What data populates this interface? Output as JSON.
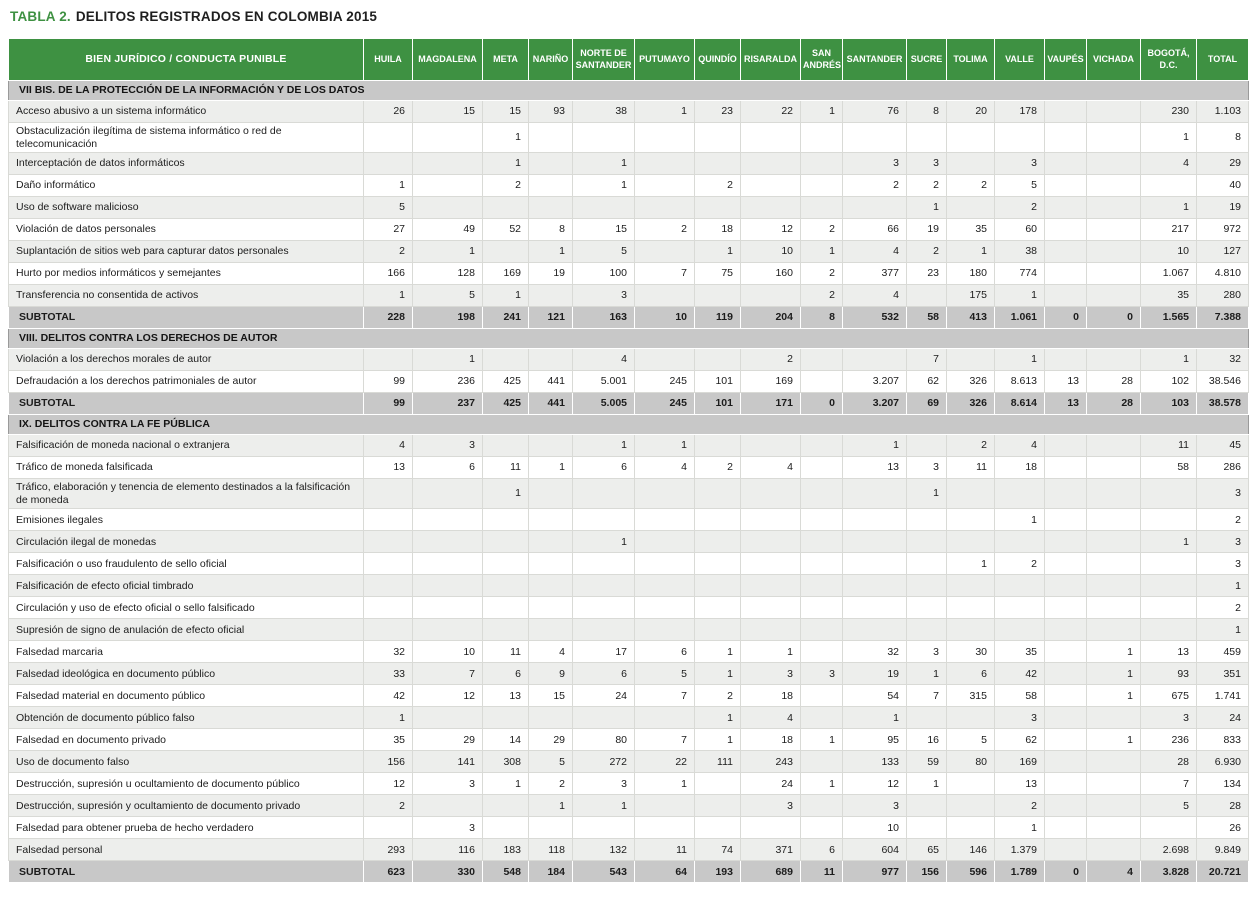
{
  "title": {
    "prefix": "TABLA 2.",
    "text": "DELITOS REGISTRADOS EN COLOMBIA 2015"
  },
  "colors": {
    "title_green": "#3e9142",
    "header_green": "#3e9142",
    "section_gray": "#c8c8c8",
    "row_alt": "#edeeec"
  },
  "table": {
    "corner_header": "BIEN JURÍDICO / CONDUCTA PUNIBLE",
    "columns": [
      "HUILA",
      "MAGDALENA",
      "META",
      "NARIÑO",
      "NORTE DE SANTANDER",
      "PUTUMAYO",
      "QUINDÍO",
      "RISARALDA",
      "SAN ANDRÉS",
      "SANTANDER",
      "SUCRE",
      "TOLIMA",
      "VALLE",
      "VAUPÉS",
      "VICHADA",
      "BOGOTÁ, D.C.",
      "TOTAL"
    ],
    "subtotal_label": "SUBTOTAL",
    "sections": [
      {
        "header": "VII BIS. DE LA PROTECCIÓN DE LA INFORMACIÓN Y DE LOS DATOS",
        "rows": [
          {
            "label": "Acceso abusivo a un sistema informático",
            "values": [
              "26",
              "15",
              "15",
              "93",
              "38",
              "1",
              "23",
              "22",
              "1",
              "76",
              "8",
              "20",
              "178",
              "",
              "",
              "230",
              "1.103"
            ]
          },
          {
            "label": "Obstaculización ilegítima de sistema informático o red de telecomunicación",
            "values": [
              "",
              "",
              "1",
              "",
              "",
              "",
              "",
              "",
              "",
              "",
              "",
              "",
              "",
              "",
              "",
              "1",
              "8"
            ]
          },
          {
            "label": "Interceptación de datos informáticos",
            "values": [
              "",
              "",
              "1",
              "",
              "1",
              "",
              "",
              "",
              "",
              "3",
              "3",
              "",
              "3",
              "",
              "",
              "4",
              "29"
            ]
          },
          {
            "label": "Daño informático",
            "values": [
              "1",
              "",
              "2",
              "",
              "1",
              "",
              "2",
              "",
              "",
              "2",
              "2",
              "2",
              "5",
              "",
              "",
              "",
              "40"
            ]
          },
          {
            "label": "Uso de software malicioso",
            "values": [
              "5",
              "",
              "",
              "",
              "",
              "",
              "",
              "",
              "",
              "",
              "1",
              "",
              "2",
              "",
              "",
              "1",
              "19"
            ]
          },
          {
            "label": "Violación de datos personales",
            "values": [
              "27",
              "49",
              "52",
              "8",
              "15",
              "2",
              "18",
              "12",
              "2",
              "66",
              "19",
              "35",
              "60",
              "",
              "",
              "217",
              "972"
            ]
          },
          {
            "label": "Suplantación de sitios web para capturar datos personales",
            "values": [
              "2",
              "1",
              "",
              "1",
              "5",
              "",
              "1",
              "10",
              "1",
              "4",
              "2",
              "1",
              "38",
              "",
              "",
              "10",
              "127"
            ]
          },
          {
            "label": "Hurto por medios informáticos y semejantes",
            "values": [
              "166",
              "128",
              "169",
              "19",
              "100",
              "7",
              "75",
              "160",
              "2",
              "377",
              "23",
              "180",
              "774",
              "",
              "",
              "1.067",
              "4.810"
            ]
          },
          {
            "label": "Transferencia no consentida de activos",
            "values": [
              "1",
              "5",
              "1",
              "",
              "3",
              "",
              "",
              "",
              "2",
              "4",
              "",
              "175",
              "1",
              "",
              "",
              "35",
              "280"
            ]
          }
        ],
        "subtotal": [
          "228",
          "198",
          "241",
          "121",
          "163",
          "10",
          "119",
          "204",
          "8",
          "532",
          "58",
          "413",
          "1.061",
          "0",
          "0",
          "1.565",
          "7.388"
        ]
      },
      {
        "header": "VIII. DELITOS CONTRA LOS DERECHOS DE AUTOR",
        "rows": [
          {
            "label": "Violación a los derechos morales de autor",
            "values": [
              "",
              "1",
              "",
              "",
              "4",
              "",
              "",
              "2",
              "",
              "",
              "7",
              "",
              "1",
              "",
              "",
              "1",
              "32"
            ]
          },
          {
            "label": "Defraudación a los derechos patrimoniales de autor",
            "values": [
              "99",
              "236",
              "425",
              "441",
              "5.001",
              "245",
              "101",
              "169",
              "",
              "3.207",
              "62",
              "326",
              "8.613",
              "13",
              "28",
              "102",
              "38.546"
            ]
          }
        ],
        "subtotal": [
          "99",
          "237",
          "425",
          "441",
          "5.005",
          "245",
          "101",
          "171",
          "0",
          "3.207",
          "69",
          "326",
          "8.614",
          "13",
          "28",
          "103",
          "38.578"
        ]
      },
      {
        "header": "IX. DELITOS CONTRA LA FE PÚBLICA",
        "rows": [
          {
            "label": "Falsificación de moneda nacional o extranjera",
            "values": [
              "4",
              "3",
              "",
              "",
              "1",
              "1",
              "",
              "",
              "",
              "1",
              "",
              "2",
              "4",
              "",
              "",
              "11",
              "45"
            ]
          },
          {
            "label": "Tráfico de moneda falsificada",
            "values": [
              "13",
              "6",
              "11",
              "1",
              "6",
              "4",
              "2",
              "4",
              "",
              "13",
              "3",
              "11",
              "18",
              "",
              "",
              "58",
              "286"
            ]
          },
          {
            "label": "Tráfico, elaboración y tenencia de elemento destinados a la falsificación de moneda",
            "values": [
              "",
              "",
              "1",
              "",
              "",
              "",
              "",
              "",
              "",
              "",
              "1",
              "",
              "",
              "",
              "",
              "",
              "3"
            ]
          },
          {
            "label": "Emisiones ilegales",
            "values": [
              "",
              "",
              "",
              "",
              "",
              "",
              "",
              "",
              "",
              "",
              "",
              "",
              "1",
              "",
              "",
              "",
              "2"
            ]
          },
          {
            "label": "Circulación ilegal de monedas",
            "values": [
              "",
              "",
              "",
              "",
              "1",
              "",
              "",
              "",
              "",
              "",
              "",
              "",
              "",
              "",
              "",
              "1",
              "3"
            ]
          },
          {
            "label": "Falsificación o uso fraudulento de sello oficial",
            "values": [
              "",
              "",
              "",
              "",
              "",
              "",
              "",
              "",
              "",
              "",
              "",
              "1",
              "2",
              "",
              "",
              "",
              "3"
            ]
          },
          {
            "label": "Falsificación de efecto oficial timbrado",
            "values": [
              "",
              "",
              "",
              "",
              "",
              "",
              "",
              "",
              "",
              "",
              "",
              "",
              "",
              "",
              "",
              "",
              "1"
            ]
          },
          {
            "label": "Circulación y uso de efecto oficial o sello falsificado",
            "values": [
              "",
              "",
              "",
              "",
              "",
              "",
              "",
              "",
              "",
              "",
              "",
              "",
              "",
              "",
              "",
              "",
              "2"
            ]
          },
          {
            "label": "Supresión de signo de anulación de efecto oficial",
            "values": [
              "",
              "",
              "",
              "",
              "",
              "",
              "",
              "",
              "",
              "",
              "",
              "",
              "",
              "",
              "",
              "",
              "1"
            ]
          },
          {
            "label": "Falsedad marcaria",
            "values": [
              "32",
              "10",
              "11",
              "4",
              "17",
              "6",
              "1",
              "1",
              "",
              "32",
              "3",
              "30",
              "35",
              "",
              "1",
              "13",
              "459"
            ]
          },
          {
            "label": "Falsedad ideológica en documento público",
            "values": [
              "33",
              "7",
              "6",
              "9",
              "6",
              "5",
              "1",
              "3",
              "3",
              "19",
              "1",
              "6",
              "42",
              "",
              "1",
              "93",
              "351"
            ]
          },
          {
            "label": "Falsedad material en documento público",
            "values": [
              "42",
              "12",
              "13",
              "15",
              "24",
              "7",
              "2",
              "18",
              "",
              "54",
              "7",
              "315",
              "58",
              "",
              "1",
              "675",
              "1.741"
            ]
          },
          {
            "label": "Obtención de documento público falso",
            "values": [
              "1",
              "",
              "",
              "",
              "",
              "",
              "1",
              "4",
              "",
              "1",
              "",
              "",
              "3",
              "",
              "",
              "3",
              "24"
            ]
          },
          {
            "label": "Falsedad en documento privado",
            "values": [
              "35",
              "29",
              "14",
              "29",
              "80",
              "7",
              "1",
              "18",
              "1",
              "95",
              "16",
              "5",
              "62",
              "",
              "1",
              "236",
              "833"
            ]
          },
          {
            "label": "Uso de documento falso",
            "values": [
              "156",
              "141",
              "308",
              "5",
              "272",
              "22",
              "111",
              "243",
              "",
              "133",
              "59",
              "80",
              "169",
              "",
              "",
              "28",
              "6.930"
            ]
          },
          {
            "label": "Destrucción, supresión u ocultamiento de documento público",
            "values": [
              "12",
              "3",
              "1",
              "2",
              "3",
              "1",
              "",
              "24",
              "1",
              "12",
              "1",
              "",
              "13",
              "",
              "",
              "7",
              "134"
            ]
          },
          {
            "label": "Destrucción, supresión y ocultamiento de documento privado",
            "values": [
              "2",
              "",
              "",
              "1",
              "1",
              "",
              "",
              "3",
              "",
              "3",
              "",
              "",
              "2",
              "",
              "",
              "5",
              "28"
            ]
          },
          {
            "label": "Falsedad para obtener prueba de hecho verdadero",
            "values": [
              "",
              "3",
              "",
              "",
              "",
              "",
              "",
              "",
              "",
              "10",
              "",
              "",
              "1",
              "",
              "",
              "",
              "26"
            ]
          },
          {
            "label": "Falsedad personal",
            "values": [
              "293",
              "116",
              "183",
              "118",
              "132",
              "11",
              "74",
              "371",
              "6",
              "604",
              "65",
              "146",
              "1.379",
              "",
              "",
              "2.698",
              "9.849"
            ]
          }
        ],
        "subtotal": [
          "623",
          "330",
          "548",
          "184",
          "543",
          "64",
          "193",
          "689",
          "11",
          "977",
          "156",
          "596",
          "1.789",
          "0",
          "4",
          "3.828",
          "20.721"
        ]
      }
    ]
  }
}
